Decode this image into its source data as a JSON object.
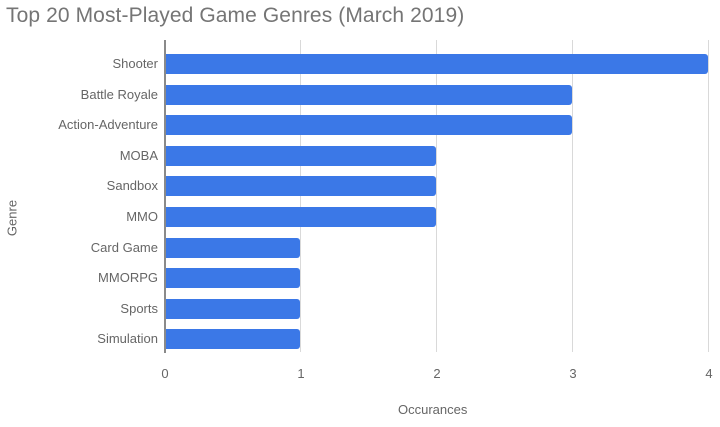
{
  "chart_data": {
    "type": "bar",
    "orientation": "horizontal",
    "title": "Top 20 Most-Played Game Genres (March 2019)",
    "xlabel": "Occurances",
    "ylabel": "Genre",
    "categories": [
      "Shooter",
      "Battle Royale",
      "Action-Adventure",
      "MOBA",
      "Sandbox",
      "MMO",
      "Card Game",
      "MMORPG",
      "Sports",
      "Simulation"
    ],
    "values": [
      4,
      3,
      3,
      2,
      2,
      2,
      1,
      1,
      1,
      1
    ],
    "xlim": [
      0,
      4
    ],
    "xticks": [
      "0",
      "1",
      "2",
      "3",
      "4"
    ],
    "grid": true,
    "legend": "none",
    "bar_color": "#3b78e7"
  }
}
